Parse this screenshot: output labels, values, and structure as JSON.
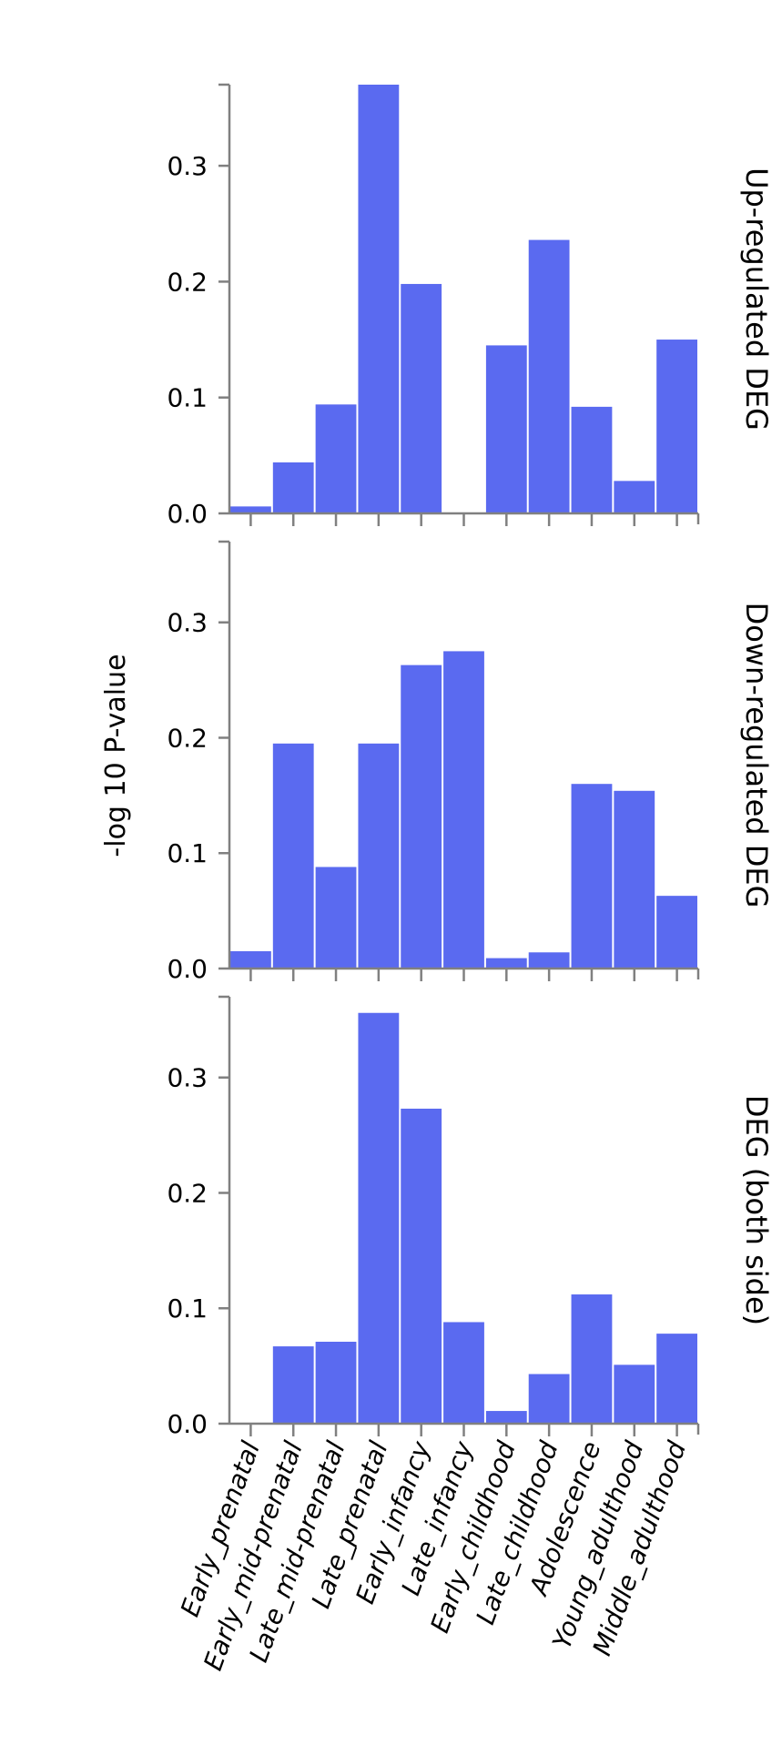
{
  "chart_data": {
    "type": "bar",
    "ylabel": "-log 10 P-value",
    "ylim": [
      0,
      0.37
    ],
    "yticks": [
      "0.0",
      "0.1",
      "0.2",
      "0.3"
    ],
    "ytick_values": [
      0,
      0.1,
      0.2,
      0.3
    ],
    "bar_color": "#5a6af0",
    "axis_color": "#808080",
    "categories": [
      "Early_prenatal",
      "Early_mid-prenatal",
      "Late_mid-prenatal",
      "Late_prenatal",
      "Early_infancy",
      "Late_infancy",
      "Early_childhood",
      "Late_childhood",
      "Adolescence",
      "Young_adulthood",
      "Middle_adulthood"
    ],
    "series": [
      {
        "name": "Up-regulated DEG",
        "values": [
          0.006,
          0.044,
          0.094,
          0.37,
          0.198,
          0.0,
          0.145,
          0.236,
          0.092,
          0.028,
          0.15
        ]
      },
      {
        "name": "Down-regulated DEG",
        "values": [
          0.015,
          0.195,
          0.088,
          0.195,
          0.263,
          0.275,
          0.009,
          0.014,
          0.16,
          0.154,
          0.063
        ]
      },
      {
        "name": "DEG (both side)",
        "values": [
          0.0,
          0.067,
          0.071,
          0.356,
          0.273,
          0.088,
          0.011,
          0.043,
          0.112,
          0.051,
          0.078
        ]
      }
    ]
  }
}
